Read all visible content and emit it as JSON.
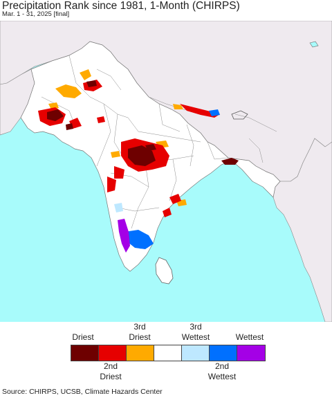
{
  "header": {
    "title": "Precipitation Rank since 1981, 1-Month (CHIRPS)",
    "subtitle": "Mar. 1 - 31, 2025 [final]"
  },
  "colors": {
    "ocean": "#a8fbfb",
    "land_outside": "#efeaef",
    "land_region": "#ffffff",
    "border": "#777777",
    "driest": "#6e0000",
    "second_driest": "#e60000",
    "third_driest": "#ffaa00",
    "normal": "#ffffff",
    "third_wettest": "#bee8ff",
    "second_wettest": "#0070ff",
    "wettest": "#a400e6"
  },
  "legend": {
    "top_labels": [
      {
        "id": "driest",
        "text": "Driest"
      },
      {
        "id": "third-driest",
        "text": "3rd\nDriest"
      },
      {
        "id": "third-wettest",
        "text": "3rd\nWettest"
      },
      {
        "id": "wettest",
        "text": "Wettest"
      }
    ],
    "bottom_labels": [
      {
        "id": "second-driest",
        "text": "2nd\nDriest"
      },
      {
        "id": "second-wettest",
        "text": "2nd\nWettest"
      }
    ],
    "categories": [
      "driest",
      "second_driest",
      "third_driest",
      "normal",
      "third_wettest",
      "second_wettest",
      "wettest"
    ]
  },
  "footer": {
    "source": "Source: CHIRPS, UCSB, Climate Hazards Center"
  }
}
